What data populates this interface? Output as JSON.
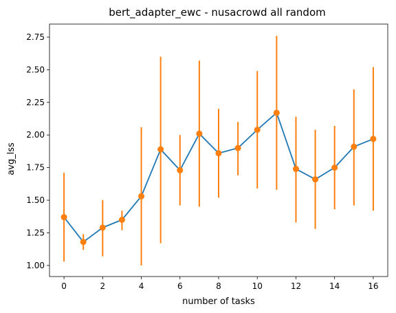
{
  "chart_data": {
    "type": "line",
    "title": "bert_adapter_ewc - nusacrowd all random",
    "xlabel": "number of tasks",
    "ylabel": "avg_lss",
    "xlim": [
      -0.75,
      16.75
    ],
    "ylim": [
      0.915,
      2.85
    ],
    "xticks": [
      0,
      2,
      4,
      6,
      8,
      10,
      12,
      14,
      16
    ],
    "yticks": [
      1.0,
      1.25,
      1.5,
      1.75,
      2.0,
      2.25,
      2.5,
      2.75
    ],
    "ytick_labels": [
      "1.00",
      "1.25",
      "1.50",
      "1.75",
      "2.00",
      "2.25",
      "2.50",
      "2.75"
    ],
    "xtick_labels": [
      "0",
      "2",
      "4",
      "6",
      "8",
      "10",
      "12",
      "14",
      "16"
    ],
    "grid": false,
    "colors": {
      "line": "#1f77b4",
      "marker": "#ff7f0e",
      "errorbar": "#ff7f0e"
    },
    "series": [
      {
        "x": [
          0,
          1,
          2,
          3,
          4,
          5,
          6,
          7,
          8,
          9,
          10,
          11,
          12,
          13,
          14,
          15,
          16
        ],
        "y": [
          1.37,
          1.18,
          1.29,
          1.35,
          1.53,
          1.89,
          1.73,
          2.01,
          1.86,
          1.9,
          2.04,
          2.17,
          1.74,
          1.66,
          1.75,
          1.91,
          1.97
        ],
        "err_low": [
          1.03,
          1.12,
          1.07,
          1.27,
          1.0,
          1.17,
          1.46,
          1.45,
          1.52,
          1.69,
          1.59,
          1.58,
          1.33,
          1.28,
          1.43,
          1.46,
          1.42
        ],
        "err_high": [
          1.71,
          1.24,
          1.5,
          1.42,
          2.06,
          2.6,
          2.0,
          2.57,
          2.2,
          2.1,
          2.49,
          2.76,
          2.14,
          2.04,
          2.07,
          2.35,
          2.52
        ]
      }
    ]
  }
}
